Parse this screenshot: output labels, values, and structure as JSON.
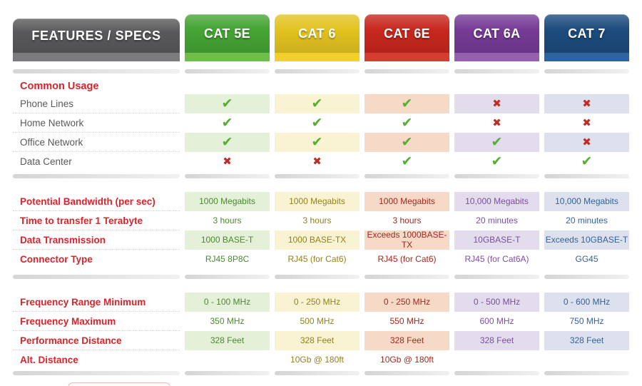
{
  "table": {
    "header": {
      "features_label": "FEATURES / SPECS",
      "features_colors": {
        "tab": "#59595b",
        "strip": "#7b7b7d"
      },
      "columns": [
        {
          "id": "cat5e",
          "label": "CAT 5E",
          "tab": "#45a434",
          "strip": "#6dbf4a",
          "tint": "#e4f0d8",
          "text": "#4a8a2f"
        },
        {
          "id": "cat6",
          "label": "CAT 6",
          "tab": "#e2c320",
          "strip": "#f2d02b",
          "tint": "#faf3d3",
          "text": "#92821a"
        },
        {
          "id": "cat6e",
          "label": "CAT 6E",
          "tab": "#c8271e",
          "strip": "#d43d30",
          "tint": "#f6d9c7",
          "text": "#a2291f"
        },
        {
          "id": "cat6a",
          "label": "CAT 6A",
          "tab": "#763b96",
          "strip": "#9560ae",
          "tint": "#e3dcec",
          "text": "#7b4fa0"
        },
        {
          "id": "cat7",
          "label": "CAT 7",
          "tab": "#1c4b7d",
          "strip": "#2c64a0",
          "tint": "#dce1ed",
          "text": "#34629c"
        }
      ]
    },
    "marks": {
      "check": "✔",
      "cross": "✖"
    },
    "mark_colors": {
      "check": "#55b031",
      "cross": "#c32b24"
    },
    "sections": [
      {
        "title": "Common Usage",
        "type": "marks",
        "label_style": "plain",
        "rows": [
          {
            "label": "Phone Lines",
            "cells": [
              "check",
              "check",
              "check",
              "cross",
              "cross"
            ]
          },
          {
            "label": "Home Network",
            "cells": [
              "check",
              "check",
              "check",
              "cross",
              "cross"
            ]
          },
          {
            "label": "Office Network",
            "cells": [
              "check",
              "check",
              "check",
              "check",
              "cross"
            ]
          },
          {
            "label": "Data Center",
            "cells": [
              "cross",
              "cross",
              "check",
              "check",
              "check"
            ]
          }
        ]
      },
      {
        "title": "",
        "type": "text",
        "label_style": "strong",
        "rows": [
          {
            "label": "Potential Bandwidth (per sec)",
            "cells": [
              "1000 Megabits",
              "1000 Megabits",
              "1000 Megabits",
              "10,000 Megabits",
              "10,000 Megabits"
            ]
          },
          {
            "label": "Time to transfer 1 Terabyte",
            "cells": [
              "3 hours",
              "3 hours",
              "3 hours",
              "20 minutes",
              "20 minutes"
            ]
          },
          {
            "label": "Data Transmission",
            "cells": [
              "1000 BASE-T",
              "1000 BASE-TX",
              "Exceeds 1000BASE-TX",
              "10GBASE-T",
              "Exceeds 10GBASE-T"
            ]
          },
          {
            "label": "Connector Type",
            "cells": [
              "RJ45 8P8C",
              "RJ45 (for Cat6)",
              "RJ45 (for Cat6)",
              "RJ45 (for Cat6A)",
              "GG45"
            ]
          }
        ]
      },
      {
        "title": "",
        "type": "text",
        "label_style": "strong",
        "rows": [
          {
            "label": "Frequency Range Minimum",
            "cells": [
              "0 - 100 MHz",
              "0 - 250 MHz",
              "0 - 250 MHz",
              "0 - 500 MHz",
              "0 - 600 MHz"
            ]
          },
          {
            "label": "Frequency Maximum",
            "cells": [
              "350 MHz",
              "500 MHz",
              "550 MHz",
              "600 MHz",
              "750 MHz"
            ]
          },
          {
            "label": "Performance Distance",
            "cells": [
              "328 Feet",
              "328 Feet",
              "328 Feet",
              "328 Feet",
              "328 Feet"
            ]
          },
          {
            "label": "Alt. Distance",
            "cells": [
              "",
              "10Gb @ 180ft",
              "10Gb @ 180ft",
              "",
              ""
            ]
          }
        ]
      }
    ]
  }
}
